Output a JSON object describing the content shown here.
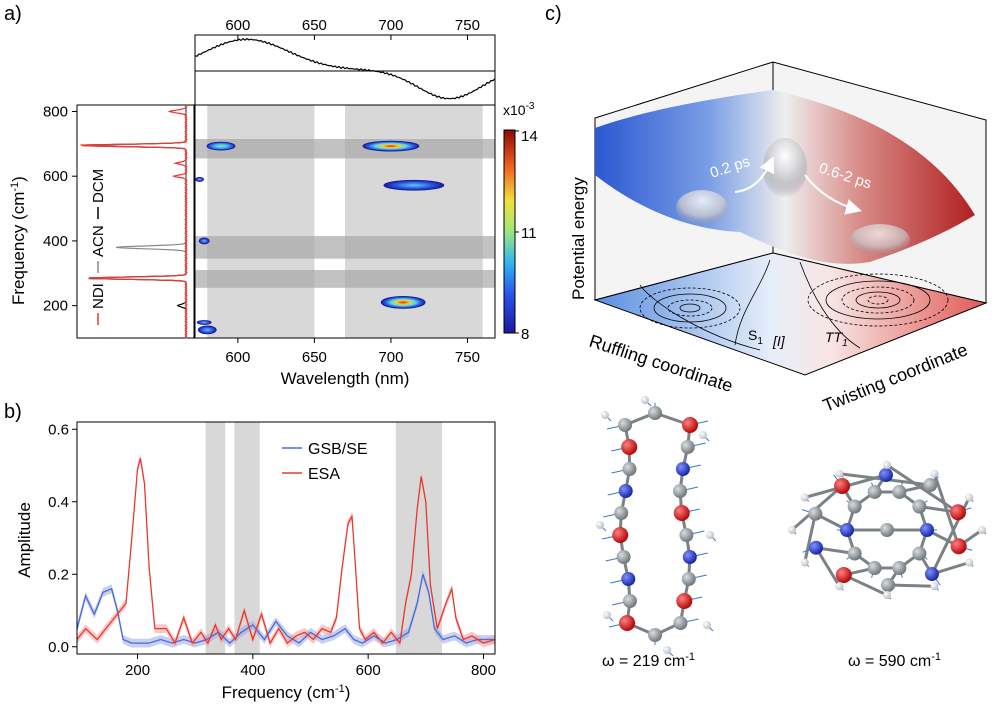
{
  "panels": {
    "a": "a)",
    "b": "b)",
    "c": "c)"
  },
  "panel_a": {
    "top_ticks": [
      "600",
      "650",
      "700",
      "750"
    ],
    "left_y_label": "Frequency (cm",
    "left_y_label_sup": "-1",
    "left_y_label_end": ")",
    "left_y_ticks": [
      "200",
      "400",
      "600",
      "800"
    ],
    "legend_vertical": [
      "NDI",
      "ACN",
      "DCM"
    ],
    "x_ticks": [
      "600",
      "650",
      "700",
      "750"
    ],
    "x_label": "Wavelength (nm)",
    "colorbar_exponent": "x10",
    "colorbar_exponent_sup": "-3",
    "colorbar_ticks": [
      "14",
      "11",
      "8"
    ]
  },
  "chart_data": [
    {
      "type": "heatmap",
      "title": "",
      "xlabel": "Wavelength (nm)",
      "ylabel": "Frequency (cm-1)",
      "xlim": [
        572,
        768
      ],
      "ylim": [
        100,
        820
      ],
      "colorbar": {
        "min": 8,
        "max": 14,
        "ticks": [
          8,
          11,
          14
        ],
        "exponent": "x10-3"
      },
      "shaded_wavelength_bands": [
        [
          580,
          650
        ],
        [
          670,
          760
        ]
      ],
      "shaded_frequency_bands": [
        [
          655,
          715
        ],
        [
          345,
          415
        ],
        [
          255,
          310
        ]
      ],
      "features": [
        {
          "wavelength": 589,
          "frequency": 693,
          "intensity": 12
        },
        {
          "wavelength": 700,
          "frequency": 693,
          "intensity": 14
        },
        {
          "wavelength": 715,
          "frequency": 572,
          "intensity": 9.5
        },
        {
          "wavelength": 708,
          "frequency": 210,
          "intensity": 14
        },
        {
          "wavelength": 578,
          "frequency": 400,
          "intensity": 8
        },
        {
          "wavelength": 575,
          "frequency": 590,
          "intensity": 8
        },
        {
          "wavelength": 580,
          "frequency": 125,
          "intensity": 9
        }
      ]
    },
    {
      "type": "line",
      "title": "",
      "xlabel": "Frequency (cm-1)",
      "ylabel": "Amplitude",
      "xlim": [
        95,
        820
      ],
      "ylim": [
        -0.02,
        0.62
      ],
      "x_ticks": [
        "200",
        "400",
        "600",
        "800"
      ],
      "y_ticks": [
        "0.0",
        "0.2",
        "0.4",
        "0.6"
      ],
      "legend": [
        "GSB/SE",
        "ESA"
      ],
      "shaded_bands": [
        [
          318,
          352
        ],
        [
          368,
          412
        ],
        [
          648,
          728
        ]
      ],
      "series": [
        {
          "name": "ESA",
          "color": "#e8382f",
          "x": [
            95,
            110,
            130,
            150,
            165,
            180,
            190,
            200,
            205,
            212,
            220,
            230,
            250,
            265,
            280,
            295,
            310,
            322,
            335,
            345,
            358,
            370,
            385,
            400,
            415,
            430,
            445,
            460,
            475,
            490,
            505,
            520,
            535,
            545,
            555,
            565,
            572,
            578,
            585,
            595,
            610,
            625,
            640,
            655,
            665,
            675,
            685,
            692,
            700,
            708,
            720,
            735,
            745,
            752,
            765,
            780,
            800,
            820
          ],
          "values": [
            0.02,
            0.05,
            0.02,
            0.06,
            0.09,
            0.12,
            0.3,
            0.49,
            0.52,
            0.45,
            0.22,
            0.05,
            0.05,
            0.01,
            0.08,
            0.01,
            0.04,
            0.01,
            0.06,
            0.02,
            0.05,
            0.02,
            0.1,
            0.02,
            0.09,
            0.01,
            0.05,
            0.01,
            0.03,
            0.04,
            0.02,
            0.05,
            0.04,
            0.08,
            0.22,
            0.34,
            0.36,
            0.22,
            0.05,
            0.02,
            0.04,
            0.01,
            0.04,
            0.01,
            0.12,
            0.2,
            0.38,
            0.47,
            0.4,
            0.17,
            0.05,
            0.12,
            0.16,
            0.08,
            0.02,
            0.03,
            0.01,
            0.02
          ]
        },
        {
          "name": "GSB/SE",
          "color": "#4a6ad8",
          "x": [
            95,
            110,
            125,
            140,
            155,
            165,
            175,
            190,
            205,
            220,
            240,
            260,
            280,
            300,
            320,
            340,
            360,
            380,
            400,
            420,
            440,
            460,
            480,
            500,
            520,
            540,
            560,
            575,
            590,
            610,
            630,
            650,
            670,
            685,
            695,
            705,
            715,
            730,
            750,
            770,
            790,
            820
          ],
          "values": [
            0.05,
            0.14,
            0.09,
            0.15,
            0.16,
            0.1,
            0.02,
            0.01,
            0.01,
            0.01,
            0.02,
            0.01,
            0.02,
            0.01,
            0.02,
            0.04,
            0.01,
            0.04,
            0.06,
            0.02,
            0.07,
            0.03,
            0.01,
            0.04,
            0.02,
            0.03,
            0.05,
            0.02,
            0.01,
            0.03,
            0.01,
            0.02,
            0.04,
            0.12,
            0.2,
            0.15,
            0.05,
            0.02,
            0.03,
            0.01,
            0.02,
            0.02
          ]
        }
      ]
    }
  ],
  "panel_c": {
    "y_axis_label": "Potential energy",
    "x_axis_label": "Ruffling coordinate",
    "z_axis_label": "Twisting coordinate",
    "arrow1": "0.2 ps",
    "arrow2": "0.6-2 ps",
    "state_s1": "S",
    "state_s1_sub": "1",
    "state_i": "[I]",
    "state_tt": "TT",
    "state_tt_sub": "1",
    "mode1": "ω = 219 cm",
    "mode2": "ω = 590 cm",
    "mode_sup": "-1"
  }
}
